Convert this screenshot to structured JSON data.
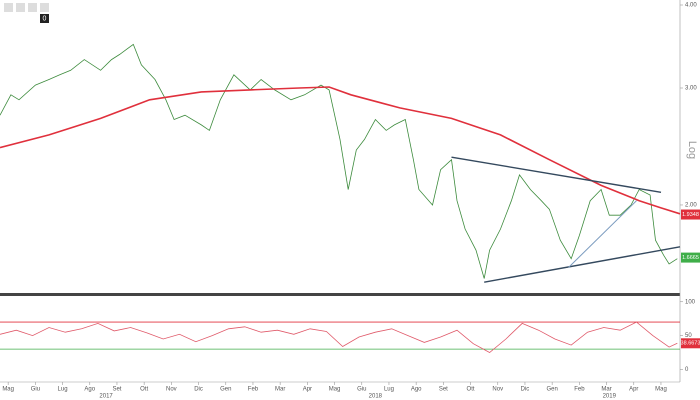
{
  "toolbar": {
    "badge": "0"
  },
  "chart_data": [
    {
      "type": "line",
      "log": true,
      "scale_label": "Log",
      "xlim": [
        -0.3,
        24.7
      ],
      "ylim": [
        1.474,
        4.07
      ],
      "yticks": [
        {
          "value": 4,
          "label": "4.00"
        },
        {
          "value": 3,
          "label": "3.00"
        },
        {
          "value": 2,
          "label": "2.00"
        }
      ],
      "series": [
        {
          "color": "#3d8b3d",
          "x": [
            -0.3,
            0.1,
            0.4,
            1.0,
            1.5,
            1.9,
            2.3,
            2.8,
            3.4,
            3.8,
            4.1,
            4.6,
            4.9,
            5.4,
            5.8,
            6.1,
            6.5,
            7.1,
            7.4,
            7.8,
            8.3,
            8.9,
            9.3,
            9.8,
            10.4,
            10.9,
            11.5,
            11.8,
            12.2,
            12.5,
            12.8,
            13.1,
            13.5,
            13.9,
            14.2,
            14.6,
            14.9,
            15.1,
            15.6,
            15.9,
            16.3,
            16.5,
            16.8,
            17.2,
            17.5,
            17.7,
            18.1,
            18.5,
            18.8,
            19.2,
            19.6,
            19.9,
            20.3,
            20.7,
            21.0,
            21.4,
            21.8,
            22.1,
            22.5,
            22.9,
            23.2,
            23.6,
            23.8,
            24.1,
            24.3,
            24.6
          ],
          "values": [
            2.73,
            2.93,
            2.88,
            3.03,
            3.09,
            3.14,
            3.19,
            3.31,
            3.19,
            3.31,
            3.37,
            3.49,
            3.25,
            3.09,
            2.88,
            2.69,
            2.73,
            2.64,
            2.59,
            2.88,
            3.14,
            2.98,
            3.09,
            2.98,
            2.88,
            2.93,
            3.03,
            2.98,
            2.51,
            2.11,
            2.42,
            2.51,
            2.69,
            2.59,
            2.64,
            2.69,
            2.34,
            2.11,
            2.0,
            2.26,
            2.34,
            2.03,
            1.84,
            1.71,
            1.55,
            1.71,
            1.84,
            2.03,
            2.22,
            2.11,
            2.03,
            1.97,
            1.77,
            1.66,
            1.8,
            2.03,
            2.11,
            1.93,
            1.93,
            2.0,
            2.11,
            2.07,
            1.77,
            1.68,
            1.63,
            1.66
          ]
        },
        {
          "color": "#e0303c",
          "width": 1.6,
          "x": [
            -0.3,
            1.5,
            3.4,
            5.2,
            7.1,
            8.9,
            10.7,
            11.8,
            12.6,
            14.4,
            16.3,
            18.1,
            19.9,
            21.8,
            23.2,
            24.0,
            24.7
          ],
          "values": [
            2.44,
            2.55,
            2.7,
            2.88,
            2.96,
            2.98,
            3.0,
            3.01,
            2.93,
            2.8,
            2.7,
            2.55,
            2.34,
            2.14,
            2.03,
            1.98,
            1.94
          ]
        },
        {
          "color": "#34495e",
          "width": 1.4,
          "x": [
            16.3,
            24.0
          ],
          "values": [
            2.36,
            2.09
          ]
        },
        {
          "color": "#34495e",
          "width": 1.4,
          "x": [
            17.5,
            24.7
          ],
          "values": [
            1.53,
            1.73
          ]
        },
        {
          "color": "#7a9bbf",
          "width": 1,
          "x": [
            20.6,
            23.1
          ],
          "values": [
            1.61,
            2.03
          ]
        }
      ],
      "markers": [
        {
          "value": 1.9348,
          "color": "#e0303c"
        },
        {
          "value": 1.6665,
          "color": "#3fae49"
        }
      ]
    },
    {
      "type": "line",
      "xlim": [
        -0.3,
        24.7
      ],
      "ylim": [
        -17,
        107
      ],
      "yticks": [
        100,
        50,
        0
      ],
      "hlines": [
        {
          "value": 70,
          "color": "#e0303c"
        },
        {
          "value": 30,
          "color": "#3fae49"
        }
      ],
      "series": [
        {
          "color": "#e05a6a",
          "x": [
            -0.3,
            0.3,
            0.9,
            1.5,
            2.1,
            2.7,
            3.3,
            3.9,
            4.5,
            5.1,
            5.7,
            6.3,
            6.9,
            7.5,
            8.1,
            8.7,
            9.3,
            9.9,
            10.5,
            11.1,
            11.7,
            12.3,
            12.9,
            13.5,
            14.1,
            14.7,
            15.3,
            15.9,
            16.5,
            17.1,
            17.7,
            18.3,
            18.9,
            19.5,
            20.1,
            20.7,
            21.3,
            21.9,
            22.5,
            23.1,
            23.7,
            24.3,
            24.6
          ],
          "values": [
            52,
            58,
            50,
            62,
            55,
            60,
            68,
            57,
            62,
            54,
            45,
            52,
            41,
            50,
            60,
            63,
            55,
            58,
            52,
            60,
            56,
            34,
            48,
            55,
            60,
            50,
            40,
            48,
            58,
            38,
            25,
            45,
            68,
            58,
            45,
            36,
            55,
            62,
            58,
            70,
            50,
            33,
            38.6673
          ]
        }
      ],
      "markers": [
        {
          "value": 38.6673,
          "color": "#e0303c"
        }
      ],
      "xticks": [
        {
          "value": 0,
          "label": "Mag"
        },
        {
          "value": 1,
          "label": "Giu"
        },
        {
          "value": 2,
          "label": "Lug"
        },
        {
          "value": 3,
          "label": "Ago"
        },
        {
          "value": 4,
          "label": "Set"
        },
        {
          "value": 5,
          "label": "Ott"
        },
        {
          "value": 6,
          "label": "Nov"
        },
        {
          "value": 7,
          "label": "Dic"
        },
        {
          "value": 8,
          "label": "Gen"
        },
        {
          "value": 9,
          "label": "Feb"
        },
        {
          "value": 10,
          "label": "Mar"
        },
        {
          "value": 11,
          "label": "Apr"
        },
        {
          "value": 12,
          "label": "Mag"
        },
        {
          "value": 13,
          "label": "Giu"
        },
        {
          "value": 14,
          "label": "Lug"
        },
        {
          "value": 15,
          "label": "Ago"
        },
        {
          "value": 16,
          "label": "Set"
        },
        {
          "value": 17,
          "label": "Ott"
        },
        {
          "value": 18,
          "label": "Nov"
        },
        {
          "value": 19,
          "label": "Dic"
        },
        {
          "value": 20,
          "label": "Gen"
        },
        {
          "value": 21,
          "label": "Feb"
        },
        {
          "value": 22,
          "label": "Mar"
        },
        {
          "value": 23,
          "label": "Apr"
        },
        {
          "value": 24,
          "label": "Mag"
        }
      ],
      "years": [
        {
          "value": 3.6,
          "label": "2017"
        },
        {
          "value": 13.5,
          "label": "2018"
        },
        {
          "value": 22.1,
          "label": "2019"
        }
      ]
    }
  ]
}
